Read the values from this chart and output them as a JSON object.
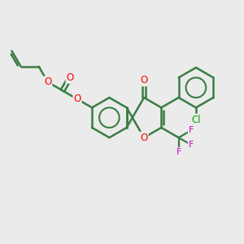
{
  "bg_color": "#ebebeb",
  "bond_color": "#3a7d44",
  "bond_width": 1.8,
  "atom_colors": {
    "O": "#ff0000",
    "F": "#cc00cc",
    "Cl": "#00aa00",
    "C": "#3a7d44"
  },
  "font_size": 8.5,
  "fig_size": [
    3.0,
    3.0
  ],
  "dpi": 100,
  "xlim": [
    0,
    10
  ],
  "ylim": [
    0,
    10
  ]
}
